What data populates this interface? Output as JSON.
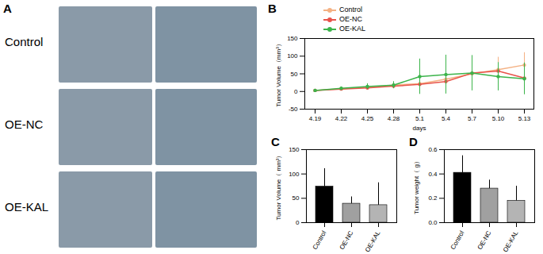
{
  "photo_panel": {
    "label": "A",
    "rows": [
      "Control",
      "OE-NC",
      "OE-KAL"
    ]
  },
  "chart_data": [
    {
      "type": "line",
      "title": "B",
      "x_label": "days",
      "y_label": "Tumor Volume（mm³）",
      "categories": [
        "4.19",
        "4.22",
        "4.25",
        "4.28",
        "5.1",
        "5.4",
        "5.7",
        "5.10",
        "5.13"
      ],
      "series": [
        {
          "name": "Control",
          "color": "#f4b183",
          "marker": "circle",
          "values": [
            3,
            8,
            12,
            18,
            22,
            35,
            50,
            62,
            75
          ],
          "errors": [
            1,
            3,
            5,
            8,
            10,
            15,
            25,
            35,
            35
          ]
        },
        {
          "name": "OE-NC",
          "color": "#e8534a",
          "marker": "circle",
          "values": [
            3,
            7,
            10,
            15,
            20,
            28,
            52,
            58,
            38
          ],
          "errors": [
            1,
            3,
            4,
            6,
            8,
            10,
            20,
            20,
            15
          ]
        },
        {
          "name": "OE-KAL",
          "color": "#3cb44b",
          "marker": "circle",
          "values": [
            3,
            9,
            14,
            18,
            42,
            48,
            52,
            42,
            36
          ],
          "errors": [
            1,
            4,
            8,
            10,
            50,
            55,
            50,
            40,
            45
          ]
        }
      ],
      "ylim": [
        -50,
        150
      ],
      "yticks": [
        -50,
        0,
        50,
        100,
        150
      ],
      "legend": "top",
      "grid": false
    },
    {
      "type": "bar",
      "title": "C",
      "y_label": "Tumor Volume（ mm³）",
      "categories": [
        "Control",
        "OE-NC",
        "OE-KAL"
      ],
      "values": [
        74,
        39,
        36
      ],
      "errors": [
        37,
        14,
        46
      ],
      "colors": [
        "#000000",
        "#a0a0a0",
        "#b4b4b4"
      ],
      "ylim": [
        0,
        150
      ],
      "yticks": [
        0,
        50,
        100,
        150
      ],
      "grid": false
    },
    {
      "type": "bar",
      "title": "D",
      "y_label": "Tumor weight（ g）",
      "categories": [
        "Control",
        "OE-NC",
        "OE-KAL"
      ],
      "values": [
        0.41,
        0.28,
        0.18
      ],
      "errors": [
        0.14,
        0.07,
        0.12
      ],
      "colors": [
        "#000000",
        "#a0a0a0",
        "#b4b4b4"
      ],
      "ylim": [
        0,
        0.6
      ],
      "yticks": [
        {
          "value": 0,
          "label": "0.0"
        },
        0.2,
        0.4,
        0.6
      ],
      "grid": false
    }
  ]
}
